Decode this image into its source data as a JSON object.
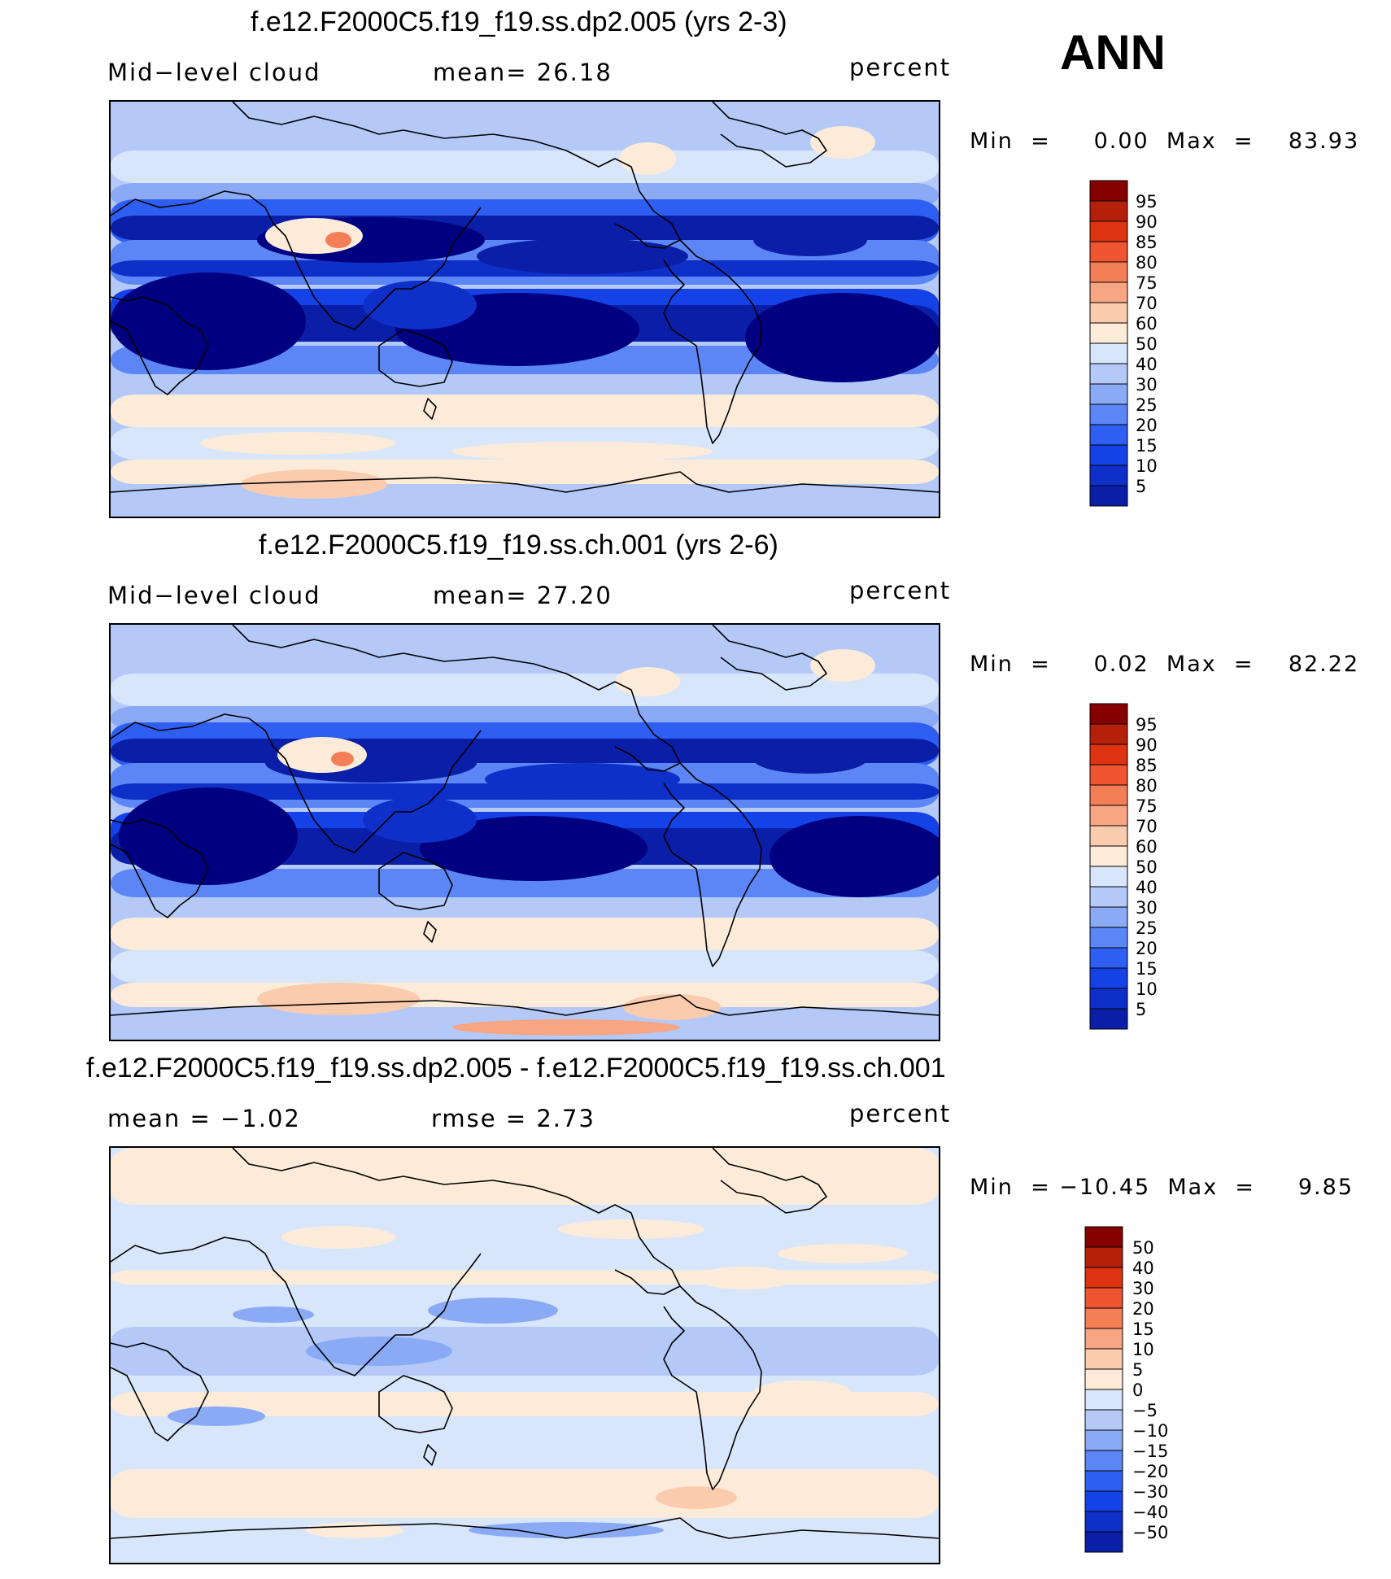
{
  "season": "ANN",
  "colors": {
    "abs_palette": [
      "#000080",
      "#0a1ea8",
      "#0e2fc8",
      "#1542e6",
      "#2e5ff2",
      "#5c86f5",
      "#8aaaf6",
      "#b4c9f8",
      "#d8e6fb",
      "#fdebd9",
      "#fbcbae",
      "#f7a583",
      "#f47f57",
      "#ee5530",
      "#dd3310",
      "#b5200b",
      "#860000"
    ],
    "diff_palette": [
      "#000080",
      "#0a1ea8",
      "#0e2fc8",
      "#1542e6",
      "#2e5ff2",
      "#5c86f5",
      "#8aaaf6",
      "#b4c9f8",
      "#d8e6fb",
      "#fdebd9",
      "#fbcbae",
      "#f7a583",
      "#f47f57",
      "#ee5530",
      "#dd3310",
      "#b5200b",
      "#860000"
    ]
  },
  "panels": [
    {
      "title": "f.e12.F2000C5.f19_f19.ss.dp2.005 (yrs 2-3)",
      "left_label": "Mid−level  cloud",
      "center_label": "mean=   26.18",
      "units": "percent",
      "minmax": "Min  =     0.00  Max  =    83.93",
      "colorbar_type": "abs",
      "colorbar_labels": [
        "95",
        "90",
        "85",
        "80",
        "75",
        "70",
        "60",
        "50",
        "40",
        "30",
        "25",
        "20",
        "15",
        "10",
        "5"
      ],
      "map_style": "abs1"
    },
    {
      "title": "f.e12.F2000C5.f19_f19.ss.ch.001 (yrs 2-6)",
      "left_label": "Mid−level  cloud",
      "center_label": "mean=   27.20",
      "units": "percent",
      "minmax": "Min  =     0.02  Max  =    82.22",
      "colorbar_type": "abs",
      "colorbar_labels": [
        "95",
        "90",
        "85",
        "80",
        "75",
        "70",
        "60",
        "50",
        "40",
        "30",
        "25",
        "20",
        "15",
        "10",
        "5"
      ],
      "map_style": "abs2"
    },
    {
      "title": "f.e12.F2000C5.f19_f19.ss.dp2.005 - f.e12.F2000C5.f19_f19.ss.ch.001",
      "left_label": "mean  =    −1.02",
      "center_label": "rmse  =     2.73",
      "units": "percent",
      "minmax": "Min  = −10.45  Max  =     9.85",
      "colorbar_type": "diff",
      "colorbar_labels": [
        "50",
        "40",
        "30",
        "20",
        "15",
        "10",
        "5",
        "0",
        "−5",
        "−10",
        "−15",
        "−20",
        "−30",
        "−40",
        "−50"
      ],
      "map_style": "diff"
    }
  ],
  "chart_data": [
    {
      "type": "heatmap",
      "title": "f.e12.F2000C5.f19_f19.ss.dp2.005 (yrs 2-3)",
      "variable": "Mid-level cloud",
      "units": "percent",
      "mean": 26.18,
      "min": 0.0,
      "max": 83.93,
      "contour_levels": [
        5,
        10,
        15,
        20,
        25,
        30,
        40,
        50,
        60,
        70,
        75,
        80,
        85,
        90,
        95
      ],
      "season": "ANN"
    },
    {
      "type": "heatmap",
      "title": "f.e12.F2000C5.f19_f19.ss.ch.001 (yrs 2-6)",
      "variable": "Mid-level cloud",
      "units": "percent",
      "mean": 27.2,
      "min": 0.02,
      "max": 82.22,
      "contour_levels": [
        5,
        10,
        15,
        20,
        25,
        30,
        40,
        50,
        60,
        70,
        75,
        80,
        85,
        90,
        95
      ],
      "season": "ANN"
    },
    {
      "type": "heatmap",
      "title": "f.e12.F2000C5.f19_f19.ss.dp2.005 - f.e12.F2000C5.f19_f19.ss.ch.001",
      "units": "percent",
      "mean": -1.02,
      "rmse": 2.73,
      "min": -10.45,
      "max": 9.85,
      "contour_levels": [
        -50,
        -40,
        -30,
        -20,
        -15,
        -10,
        -5,
        0,
        5,
        10,
        15,
        20,
        30,
        40,
        50
      ],
      "season": "ANN"
    }
  ]
}
